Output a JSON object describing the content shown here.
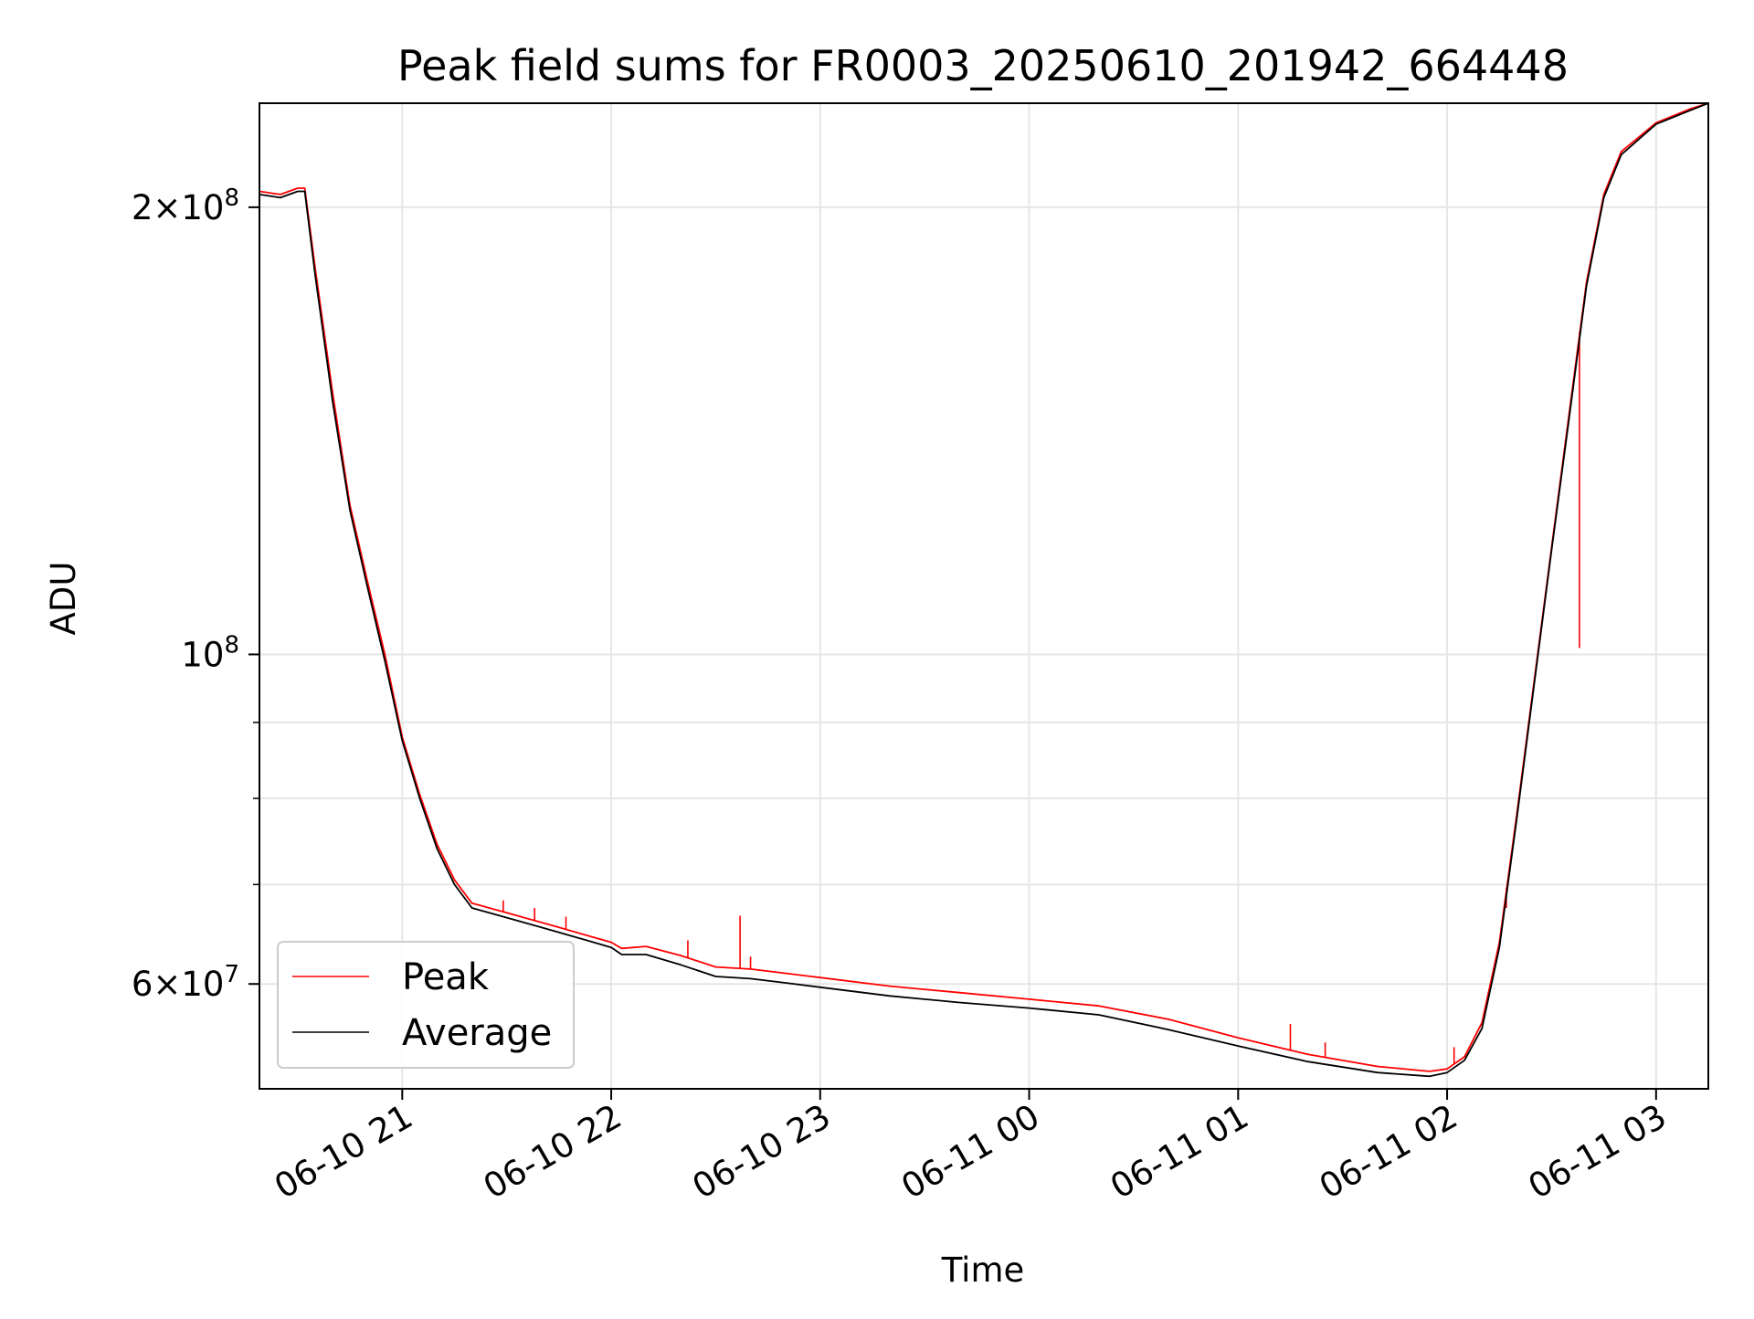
{
  "chart_data": {
    "type": "line",
    "title": "Peak field sums for FR0003_20250610_201942_664448",
    "xlabel": "Time",
    "ylabel": "ADU",
    "yscale": "log",
    "xlim": [
      "2025-06-10 20:19",
      "2025-06-11 03:15"
    ],
    "ylim": [
      51000000,
      235000000
    ],
    "grid": true,
    "legend": {
      "placement": "lower-left"
    },
    "x_ticks": [
      "06-10 21",
      "06-10 22",
      "06-10 23",
      "06-11 00",
      "06-11 01",
      "06-11 02",
      "06-11 03"
    ],
    "x_tick_times": [
      "2025-06-10 21:00",
      "2025-06-10 22:00",
      "2025-06-10 23:00",
      "2025-06-11 00:00",
      "2025-06-11 01:00",
      "2025-06-11 02:00",
      "2025-06-11 03:00"
    ],
    "y_ticks": [
      {
        "value": 200000000,
        "mantissa": "2",
        "exponent": "8"
      },
      {
        "value": 100000000,
        "mantissa": "",
        "exponent": "8"
      },
      {
        "value": 60000000,
        "mantissa": "6",
        "exponent": "7"
      }
    ],
    "y_minor_ticks": [
      70000000,
      80000000,
      90000000
    ],
    "series": [
      {
        "name": "Peak",
        "color": "#ff0000",
        "points": [
          [
            "2025-06-10 20:19",
            205000000
          ],
          [
            "2025-06-10 20:25",
            204000000
          ],
          [
            "2025-06-10 20:30",
            206000000
          ],
          [
            "2025-06-10 20:32",
            206000000
          ],
          [
            "2025-06-10 20:35",
            182000000
          ],
          [
            "2025-06-10 20:40",
            150000000
          ],
          [
            "2025-06-10 20:45",
            126000000
          ],
          [
            "2025-06-10 20:50",
            112000000
          ],
          [
            "2025-06-10 20:55",
            100000000
          ],
          [
            "2025-06-10 21:00",
            88000000
          ],
          [
            "2025-06-10 21:05",
            80500000
          ],
          [
            "2025-06-10 21:10",
            74500000
          ],
          [
            "2025-06-10 21:15",
            70500000
          ],
          [
            "2025-06-10 21:20",
            68000000
          ],
          [
            "2025-06-10 21:30",
            67000000
          ],
          [
            "2025-06-10 21:45",
            65500000
          ],
          [
            "2025-06-10 22:00",
            64000000
          ],
          [
            "2025-06-10 22:03",
            63400000
          ],
          [
            "2025-06-10 22:10",
            63600000
          ],
          [
            "2025-06-10 22:20",
            62700000
          ],
          [
            "2025-06-10 22:30",
            61600000
          ],
          [
            "2025-06-10 22:40",
            61400000
          ],
          [
            "2025-06-10 22:50",
            61000000
          ],
          [
            "2025-06-10 23:00",
            60600000
          ],
          [
            "2025-06-10 23:20",
            59800000
          ],
          [
            "2025-06-10 23:40",
            59200000
          ],
          [
            "2025-06-11 00:00",
            58600000
          ],
          [
            "2025-06-11 00:20",
            58000000
          ],
          [
            "2025-06-11 00:40",
            56800000
          ],
          [
            "2025-06-11 01:00",
            55200000
          ],
          [
            "2025-06-11 01:20",
            53800000
          ],
          [
            "2025-06-11 01:40",
            52800000
          ],
          [
            "2025-06-11 01:55",
            52400000
          ],
          [
            "2025-06-11 02:00",
            52600000
          ],
          [
            "2025-06-11 02:05",
            53600000
          ],
          [
            "2025-06-11 02:10",
            56500000
          ],
          [
            "2025-06-11 02:15",
            64000000
          ],
          [
            "2025-06-11 02:20",
            78000000
          ],
          [
            "2025-06-11 02:25",
            96000000
          ],
          [
            "2025-06-11 02:30",
            118000000
          ],
          [
            "2025-06-11 02:35",
            145000000
          ],
          [
            "2025-06-11 02:40",
            178000000
          ],
          [
            "2025-06-11 02:45",
            204000000
          ],
          [
            "2025-06-11 02:50",
            218000000
          ],
          [
            "2025-06-11 03:00",
            228000000
          ],
          [
            "2025-06-11 03:10",
            233000000
          ],
          [
            "2025-06-11 03:15",
            235000000
          ]
        ],
        "spikes": [
          [
            "2025-06-10 21:29",
            68300000
          ],
          [
            "2025-06-10 21:38",
            67500000
          ],
          [
            "2025-06-10 21:47",
            66600000
          ],
          [
            "2025-06-10 22:22",
            64200000
          ],
          [
            "2025-06-10 22:37",
            66700000
          ],
          [
            "2025-06-10 22:40",
            62600000
          ],
          [
            "2025-06-11 01:15",
            56400000
          ],
          [
            "2025-06-11 01:25",
            54800000
          ],
          [
            "2025-06-11 02:02",
            54400000
          ],
          [
            "2025-06-11 02:17",
            67500000
          ],
          [
            "2025-06-11 02:38",
            101000000
          ]
        ]
      },
      {
        "name": "Average",
        "color": "#000000",
        "points": [
          [
            "2025-06-10 20:19",
            204000000
          ],
          [
            "2025-06-10 20:25",
            203000000
          ],
          [
            "2025-06-10 20:30",
            205000000
          ],
          [
            "2025-06-10 20:32",
            205000000
          ],
          [
            "2025-06-10 20:35",
            180000000
          ],
          [
            "2025-06-10 20:40",
            148000000
          ],
          [
            "2025-06-10 20:45",
            125000000
          ],
          [
            "2025-06-10 20:50",
            111000000
          ],
          [
            "2025-06-10 20:55",
            99000000
          ],
          [
            "2025-06-10 21:00",
            87500000
          ],
          [
            "2025-06-10 21:05",
            80000000
          ],
          [
            "2025-06-10 21:10",
            74000000
          ],
          [
            "2025-06-10 21:15",
            70000000
          ],
          [
            "2025-06-10 21:20",
            67500000
          ],
          [
            "2025-06-10 21:30",
            66500000
          ],
          [
            "2025-06-10 21:45",
            65000000
          ],
          [
            "2025-06-10 22:00",
            63500000
          ],
          [
            "2025-06-10 22:03",
            62800000
          ],
          [
            "2025-06-10 22:10",
            62800000
          ],
          [
            "2025-06-10 22:20",
            61800000
          ],
          [
            "2025-06-10 22:30",
            60700000
          ],
          [
            "2025-06-10 22:40",
            60500000
          ],
          [
            "2025-06-10 22:50",
            60100000
          ],
          [
            "2025-06-10 23:00",
            59700000
          ],
          [
            "2025-06-10 23:20",
            58900000
          ],
          [
            "2025-06-10 23:40",
            58300000
          ],
          [
            "2025-06-11 00:00",
            57800000
          ],
          [
            "2025-06-11 00:20",
            57200000
          ],
          [
            "2025-06-11 00:40",
            55900000
          ],
          [
            "2025-06-11 01:00",
            54500000
          ],
          [
            "2025-06-11 01:20",
            53200000
          ],
          [
            "2025-06-11 01:40",
            52300000
          ],
          [
            "2025-06-11 01:55",
            52000000
          ],
          [
            "2025-06-11 02:00",
            52300000
          ],
          [
            "2025-06-11 02:05",
            53300000
          ],
          [
            "2025-06-11 02:10",
            56000000
          ],
          [
            "2025-06-11 02:15",
            63500000
          ],
          [
            "2025-06-11 02:20",
            77500000
          ],
          [
            "2025-06-11 02:25",
            95500000
          ],
          [
            "2025-06-11 02:30",
            117500000
          ],
          [
            "2025-06-11 02:35",
            144000000
          ],
          [
            "2025-06-11 02:40",
            177000000
          ],
          [
            "2025-06-11 02:45",
            203000000
          ],
          [
            "2025-06-11 02:50",
            217000000
          ],
          [
            "2025-06-11 03:00",
            227500000
          ],
          [
            "2025-06-11 03:10",
            232500000
          ],
          [
            "2025-06-11 03:15",
            235000000
          ]
        ]
      }
    ]
  }
}
